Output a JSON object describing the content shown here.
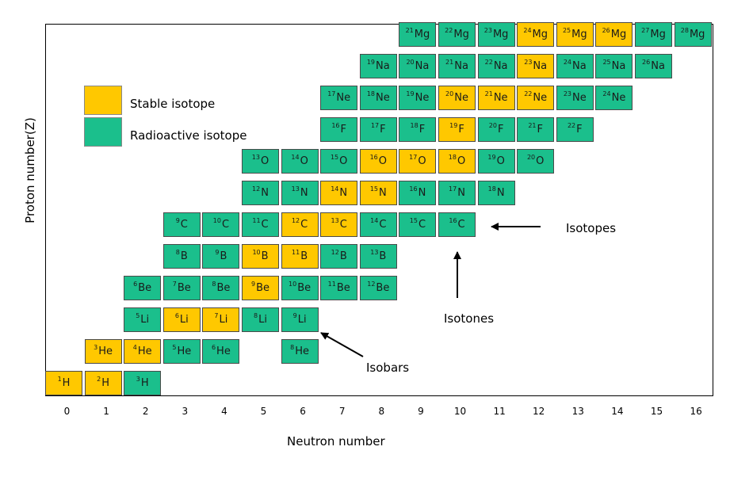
{
  "axes": {
    "xlabel": "Neutron number",
    "ylabel": "Proton number(Z)",
    "xticks": [
      "0",
      "1",
      "2",
      "3",
      "4",
      "5",
      "6",
      "7",
      "8",
      "9",
      "10",
      "11",
      "12",
      "13",
      "14",
      "15",
      "16"
    ]
  },
  "legend": {
    "stable_label": "Stable isotope",
    "radio_label": "Radioactive isotope",
    "stable_color": "#ffc800",
    "radio_color": "#1bbf8c"
  },
  "annotations": {
    "isotopes": "Isotopes",
    "isotones": "Isotones",
    "isobars": "Isobars"
  },
  "nuclides": [
    {
      "a": "1",
      "s": "H",
      "n": 0,
      "z": 1,
      "stable": true
    },
    {
      "a": "2",
      "s": "H",
      "n": 1,
      "z": 1,
      "stable": true
    },
    {
      "a": "3",
      "s": "H",
      "n": 2,
      "z": 1,
      "stable": false
    },
    {
      "a": "3",
      "s": "He",
      "n": 1,
      "z": 2,
      "stable": true
    },
    {
      "a": "4",
      "s": "He",
      "n": 2,
      "z": 2,
      "stable": true
    },
    {
      "a": "5",
      "s": "He",
      "n": 3,
      "z": 2,
      "stable": false
    },
    {
      "a": "6",
      "s": "He",
      "n": 4,
      "z": 2,
      "stable": false
    },
    {
      "a": "8",
      "s": "He",
      "n": 6,
      "z": 2,
      "stable": false
    },
    {
      "a": "5",
      "s": "Li",
      "n": 2,
      "z": 3,
      "stable": false
    },
    {
      "a": "6",
      "s": "Li",
      "n": 3,
      "z": 3,
      "stable": true
    },
    {
      "a": "7",
      "s": "Li",
      "n": 4,
      "z": 3,
      "stable": true
    },
    {
      "a": "8",
      "s": "Li",
      "n": 5,
      "z": 3,
      "stable": false
    },
    {
      "a": "9",
      "s": "Li",
      "n": 6,
      "z": 3,
      "stable": false
    },
    {
      "a": "6",
      "s": "Be",
      "n": 2,
      "z": 4,
      "stable": false
    },
    {
      "a": "7",
      "s": "Be",
      "n": 3,
      "z": 4,
      "stable": false
    },
    {
      "a": "8",
      "s": "Be",
      "n": 4,
      "z": 4,
      "stable": false
    },
    {
      "a": "9",
      "s": "Be",
      "n": 5,
      "z": 4,
      "stable": true
    },
    {
      "a": "10",
      "s": "Be",
      "n": 6,
      "z": 4,
      "stable": false
    },
    {
      "a": "11",
      "s": "Be",
      "n": 7,
      "z": 4,
      "stable": false
    },
    {
      "a": "12",
      "s": "Be",
      "n": 8,
      "z": 4,
      "stable": false
    },
    {
      "a": "8",
      "s": "B",
      "n": 3,
      "z": 5,
      "stable": false
    },
    {
      "a": "9",
      "s": "B",
      "n": 4,
      "z": 5,
      "stable": false
    },
    {
      "a": "10",
      "s": "B",
      "n": 5,
      "z": 5,
      "stable": true
    },
    {
      "a": "11",
      "s": "B",
      "n": 6,
      "z": 5,
      "stable": true
    },
    {
      "a": "12",
      "s": "B",
      "n": 7,
      "z": 5,
      "stable": false
    },
    {
      "a": "13",
      "s": "B",
      "n": 8,
      "z": 5,
      "stable": false
    },
    {
      "a": "9",
      "s": "C",
      "n": 3,
      "z": 6,
      "stable": false
    },
    {
      "a": "10",
      "s": "C",
      "n": 4,
      "z": 6,
      "stable": false
    },
    {
      "a": "11",
      "s": "C",
      "n": 5,
      "z": 6,
      "stable": false
    },
    {
      "a": "12",
      "s": "C",
      "n": 6,
      "z": 6,
      "stable": true
    },
    {
      "a": "13",
      "s": "C",
      "n": 7,
      "z": 6,
      "stable": true
    },
    {
      "a": "14",
      "s": "C",
      "n": 8,
      "z": 6,
      "stable": false
    },
    {
      "a": "15",
      "s": "C",
      "n": 9,
      "z": 6,
      "stable": false
    },
    {
      "a": "16",
      "s": "C",
      "n": 10,
      "z": 6,
      "stable": false
    },
    {
      "a": "12",
      "s": "N",
      "n": 5,
      "z": 7,
      "stable": false
    },
    {
      "a": "13",
      "s": "N",
      "n": 6,
      "z": 7,
      "stable": false
    },
    {
      "a": "14",
      "s": "N",
      "n": 7,
      "z": 7,
      "stable": true
    },
    {
      "a": "15",
      "s": "N",
      "n": 8,
      "z": 7,
      "stable": true
    },
    {
      "a": "16",
      "s": "N",
      "n": 9,
      "z": 7,
      "stable": false
    },
    {
      "a": "17",
      "s": "N",
      "n": 10,
      "z": 7,
      "stable": false
    },
    {
      "a": "18",
      "s": "N",
      "n": 11,
      "z": 7,
      "stable": false
    },
    {
      "a": "13",
      "s": "O",
      "n": 5,
      "z": 8,
      "stable": false
    },
    {
      "a": "14",
      "s": "O",
      "n": 6,
      "z": 8,
      "stable": false
    },
    {
      "a": "15",
      "s": "O",
      "n": 7,
      "z": 8,
      "stable": false
    },
    {
      "a": "16",
      "s": "O",
      "n": 8,
      "z": 8,
      "stable": true
    },
    {
      "a": "17",
      "s": "O",
      "n": 9,
      "z": 8,
      "stable": true
    },
    {
      "a": "18",
      "s": "O",
      "n": 10,
      "z": 8,
      "stable": true
    },
    {
      "a": "19",
      "s": "O",
      "n": 11,
      "z": 8,
      "stable": false
    },
    {
      "a": "20",
      "s": "O",
      "n": 12,
      "z": 8,
      "stable": false
    },
    {
      "a": "16",
      "s": "F",
      "n": 7,
      "z": 9,
      "stable": false
    },
    {
      "a": "17",
      "s": "F",
      "n": 8,
      "z": 9,
      "stable": false
    },
    {
      "a": "18",
      "s": "F",
      "n": 9,
      "z": 9,
      "stable": false
    },
    {
      "a": "19",
      "s": "F",
      "n": 10,
      "z": 9,
      "stable": true
    },
    {
      "a": "20",
      "s": "F",
      "n": 11,
      "z": 9,
      "stable": false
    },
    {
      "a": "21",
      "s": "F",
      "n": 12,
      "z": 9,
      "stable": false
    },
    {
      "a": "22",
      "s": "F",
      "n": 13,
      "z": 9,
      "stable": false
    },
    {
      "a": "17",
      "s": "Ne",
      "n": 7,
      "z": 10,
      "stable": false
    },
    {
      "a": "18",
      "s": "Ne",
      "n": 8,
      "z": 10,
      "stable": false
    },
    {
      "a": "19",
      "s": "Ne",
      "n": 9,
      "z": 10,
      "stable": false
    },
    {
      "a": "20",
      "s": "Ne",
      "n": 10,
      "z": 10,
      "stable": true
    },
    {
      "a": "21",
      "s": "Ne",
      "n": 11,
      "z": 10,
      "stable": true
    },
    {
      "a": "22",
      "s": "Ne",
      "n": 12,
      "z": 10,
      "stable": true
    },
    {
      "a": "23",
      "s": "Ne",
      "n": 13,
      "z": 10,
      "stable": false
    },
    {
      "a": "24",
      "s": "Ne",
      "n": 14,
      "z": 10,
      "stable": false
    },
    {
      "a": "19",
      "s": "Na",
      "n": 8,
      "z": 11,
      "stable": false
    },
    {
      "a": "20",
      "s": "Na",
      "n": 9,
      "z": 11,
      "stable": false
    },
    {
      "a": "21",
      "s": "Na",
      "n": 10,
      "z": 11,
      "stable": false
    },
    {
      "a": "22",
      "s": "Na",
      "n": 11,
      "z": 11,
      "stable": false
    },
    {
      "a": "23",
      "s": "Na",
      "n": 12,
      "z": 11,
      "stable": true
    },
    {
      "a": "24",
      "s": "Na",
      "n": 13,
      "z": 11,
      "stable": false
    },
    {
      "a": "25",
      "s": "Na",
      "n": 14,
      "z": 11,
      "stable": false
    },
    {
      "a": "26",
      "s": "Na",
      "n": 15,
      "z": 11,
      "stable": false
    },
    {
      "a": "21",
      "s": "Mg",
      "n": 9,
      "z": 12,
      "stable": false
    },
    {
      "a": "22",
      "s": "Mg",
      "n": 10,
      "z": 12,
      "stable": false
    },
    {
      "a": "23",
      "s": "Mg",
      "n": 11,
      "z": 12,
      "stable": false
    },
    {
      "a": "24",
      "s": "Mg",
      "n": 12,
      "z": 12,
      "stable": true
    },
    {
      "a": "25",
      "s": "Mg",
      "n": 13,
      "z": 12,
      "stable": true
    },
    {
      "a": "26",
      "s": "Mg",
      "n": 14,
      "z": 12,
      "stable": true
    },
    {
      "a": "27",
      "s": "Mg",
      "n": 15,
      "z": 12,
      "stable": false
    },
    {
      "a": "28",
      "s": "Mg",
      "n": 16,
      "z": 12,
      "stable": false
    }
  ]
}
